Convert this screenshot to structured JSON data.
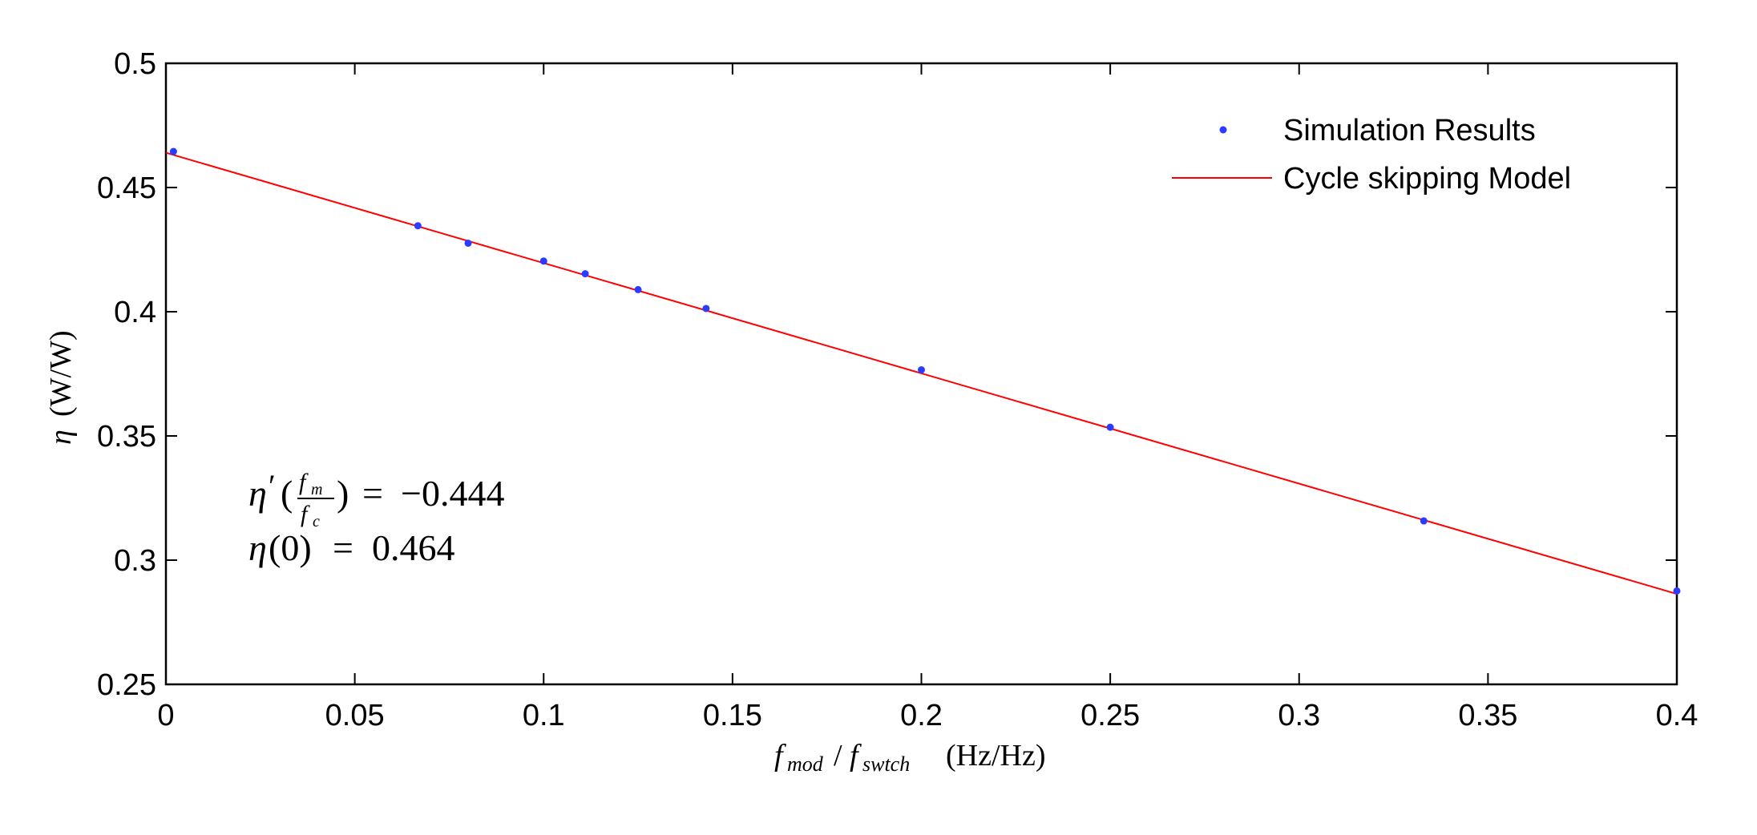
{
  "chart_data": {
    "type": "scatter",
    "title": "",
    "xlabel": "f_mod / f_swtch (Hz/Hz)",
    "xlabel_parts": {
      "f": "f",
      "sub1": "mod",
      "slash": "/",
      "sub2": "swtch",
      "units": "(Hz/Hz)"
    },
    "ylabel": "η (W/W)",
    "ylabel_parts": {
      "eta": "η",
      "units": "(W/W)"
    },
    "xlim": [
      0,
      0.4
    ],
    "ylim": [
      0.25,
      0.5
    ],
    "x_ticks": [
      "0",
      "0.05",
      "0.1",
      "0.15",
      "0.2",
      "0.25",
      "0.3",
      "0.35",
      "0.4"
    ],
    "y_ticks": [
      "0.25",
      "0.3",
      "0.35",
      "0.4",
      "0.45",
      "0.5"
    ],
    "grid": false,
    "legend_position": "top-right",
    "series": [
      {
        "name": "Simulation Results",
        "kind": "scatter",
        "color": "#2b3bff",
        "points": [
          [
            0.002,
            0.4645
          ],
          [
            0.0667,
            0.4346
          ],
          [
            0.08,
            0.4276
          ],
          [
            0.1,
            0.4204
          ],
          [
            0.111,
            0.4153
          ],
          [
            0.125,
            0.4089
          ],
          [
            0.143,
            0.4013
          ],
          [
            0.2,
            0.3766
          ],
          [
            0.25,
            0.3535
          ],
          [
            0.333,
            0.3158
          ],
          [
            0.4,
            0.2876
          ]
        ]
      },
      {
        "name": "Cycle skipping Model",
        "kind": "line",
        "color": "#ff0000",
        "slope": -0.444,
        "intercept": 0.464,
        "x_range": [
          0,
          0.4
        ]
      }
    ],
    "annotations": {
      "slope_label": {
        "eta": "η",
        "prime": "′",
        "open": "(",
        "num": "f",
        "num_sub": "m",
        "den": "f",
        "den_sub": "c",
        "close": ")",
        "equals": "=",
        "value": "−0.444"
      },
      "intercept_label": {
        "eta": "η",
        "arg": "(0)",
        "equals": "=",
        "value": "0.464"
      }
    }
  }
}
